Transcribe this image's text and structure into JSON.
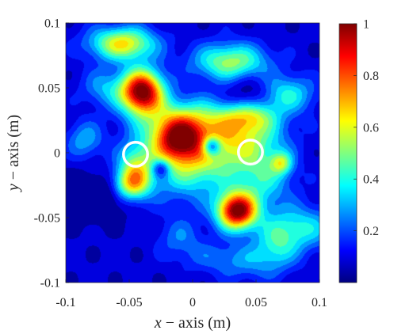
{
  "chart_data": {
    "type": "heatmap",
    "title": "",
    "xlabel": {
      "var": "x",
      "rest": " − axis (m)"
    },
    "ylabel": {
      "var": "y",
      "rest": " − axis (m)"
    },
    "xlim": [
      -0.1,
      0.1
    ],
    "ylim": [
      -0.1,
      0.1
    ],
    "x_ticks": [
      {
        "value": -0.1,
        "label": "-0.1"
      },
      {
        "value": -0.05,
        "label": "-0.05"
      },
      {
        "value": 0,
        "label": "0"
      },
      {
        "value": 0.05,
        "label": "0.05"
      },
      {
        "value": 0.1,
        "label": "0.1"
      }
    ],
    "y_ticks": [
      {
        "value": 0.1,
        "label": "0.1"
      },
      {
        "value": 0.05,
        "label": "0.05"
      },
      {
        "value": 0,
        "label": "0"
      },
      {
        "value": -0.05,
        "label": "-0.05"
      },
      {
        "value": -0.1,
        "label": "-0.1"
      }
    ],
    "colorbar": {
      "colormap": "jet",
      "range": [
        0,
        1
      ],
      "ticks": [
        {
          "value": 1,
          "label": "1"
        },
        {
          "value": 0.8,
          "label": "0.8"
        },
        {
          "value": 0.6,
          "label": "0.6"
        },
        {
          "value": 0.4,
          "label": "0.4"
        },
        {
          "value": 0.2,
          "label": "0.2"
        }
      ]
    },
    "grid": false,
    "background_level": 0.08,
    "features": [
      {
        "x": -0.04,
        "y": 0.047,
        "value": 0.96,
        "sx": 0.012,
        "sy": 0.012
      },
      {
        "x": 0.035,
        "y": -0.045,
        "value": 0.92,
        "sx": 0.011,
        "sy": 0.01
      },
      {
        "x": -0.055,
        "y": 0.084,
        "value": 0.56,
        "sx": 0.018,
        "sy": 0.009
      },
      {
        "x": 0.03,
        "y": 0.07,
        "value": 0.45,
        "sx": 0.02,
        "sy": 0.01
      },
      {
        "x": -0.012,
        "y": 0.01,
        "value": 0.58,
        "sx": 0.014,
        "sy": 0.012
      },
      {
        "x": -0.005,
        "y": 0.025,
        "value": 0.32,
        "sx": 0.025,
        "sy": 0.012
      },
      {
        "x": 0.04,
        "y": 0.012,
        "value": 0.38,
        "sx": 0.022,
        "sy": 0.015
      },
      {
        "x": 0.045,
        "y": 0.028,
        "value": 0.32,
        "sx": 0.015,
        "sy": 0.008
      },
      {
        "x": 0.0,
        "y": -0.005,
        "value": 0.45,
        "sx": 0.025,
        "sy": 0.02
      },
      {
        "x": -0.045,
        "y": -0.015,
        "value": 0.45,
        "sx": 0.01,
        "sy": 0.014
      },
      {
        "x": -0.05,
        "y": -0.025,
        "value": 0.3,
        "sx": 0.01,
        "sy": 0.008
      },
      {
        "x": 0.055,
        "y": -0.02,
        "value": 0.28,
        "sx": 0.016,
        "sy": 0.016
      },
      {
        "x": 0.07,
        "y": -0.008,
        "value": 0.34,
        "sx": 0.006,
        "sy": 0.006
      },
      {
        "x": 0.075,
        "y": 0.045,
        "value": 0.3,
        "sx": 0.015,
        "sy": 0.01
      },
      {
        "x": 0.066,
        "y": -0.072,
        "value": 0.22,
        "sx": 0.012,
        "sy": 0.012
      },
      {
        "x": 0.084,
        "y": -0.058,
        "value": 0.3,
        "sx": 0.02,
        "sy": 0.012
      },
      {
        "x": -0.085,
        "y": 0.01,
        "value": 0.22,
        "sx": 0.01,
        "sy": 0.01
      },
      {
        "x": -0.07,
        "y": 0.05,
        "value": 0.2,
        "sx": 0.012,
        "sy": 0.01
      },
      {
        "x": 0.015,
        "y": -0.08,
        "value": 0.1,
        "sx": 0.02,
        "sy": 0.008
      },
      {
        "x": -0.01,
        "y": -0.065,
        "value": 0.15,
        "sx": 0.012,
        "sy": 0.01
      },
      {
        "x": 0.045,
        "y": -0.085,
        "value": 0.15,
        "sx": 0.02,
        "sy": 0.01
      },
      {
        "x": 0.015,
        "y": 0.005,
        "value": -0.45,
        "sx": 0.005,
        "sy": 0.005
      },
      {
        "x": -0.025,
        "y": -0.012,
        "value": -0.3,
        "sx": 0.005,
        "sy": 0.005
      },
      {
        "x": -0.078,
        "y": -0.035,
        "value": -0.2,
        "sx": 0.02,
        "sy": 0.012
      },
      {
        "x": 0.045,
        "y": 0.045,
        "value": -0.15,
        "sx": 0.012,
        "sy": 0.01
      }
    ],
    "markers": [
      {
        "shape": "circle",
        "x": -0.045,
        "y": -0.0012,
        "radius": 0.0095,
        "color": "#ffffff"
      },
      {
        "shape": "circle",
        "x": 0.0456,
        "y": 0.0005,
        "radius": 0.0095,
        "color": "#ffffff"
      }
    ]
  }
}
